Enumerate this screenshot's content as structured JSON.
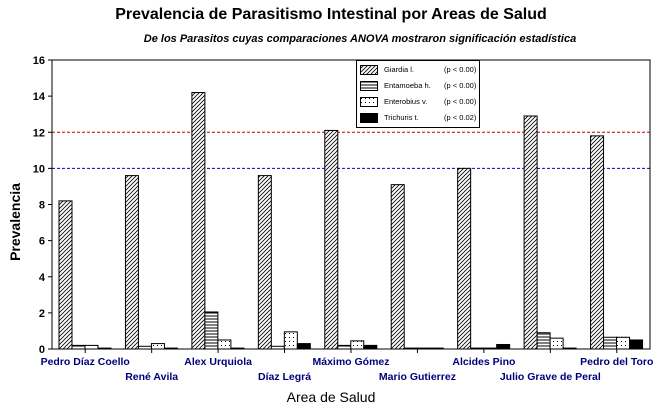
{
  "chart_data": {
    "type": "bar",
    "title": "Prevalencia de Parasitismo Intestinal por Areas de Salud",
    "subtitle": "De los Parasitos cuyas comparaciones ANOVA mostraron significación estadística",
    "xlabel": "Area de Salud",
    "ylabel": "Prevalencia",
    "ylim": [
      0,
      16
    ],
    "yticks": [
      "0",
      "2",
      "4",
      "6",
      "8",
      "10",
      "12",
      "14",
      "16"
    ],
    "grid": false,
    "reference_lines": [
      {
        "y": 10,
        "color": "#0000cc",
        "style": "dashed"
      },
      {
        "y": 12,
        "color": "#cc0000",
        "style": "dashed"
      }
    ],
    "categories": [
      "Pedro Díaz Coello",
      "René Avila",
      "Alex Urquiola",
      "Díaz Legrá",
      "Máximo Gómez",
      "Mario Gutierrez",
      "Alcides Pino",
      "Julio Grave de Peral",
      "Pedro del Toro"
    ],
    "series": [
      {
        "name": "Giardia l.",
        "p_label": "(p < 0.00)",
        "pattern": "diagonal-hatch",
        "values": [
          8.2,
          9.6,
          14.2,
          9.6,
          12.1,
          9.1,
          10.0,
          12.9,
          11.8
        ]
      },
      {
        "name": "Entamoeba h.",
        "p_label": "(p < 0.00)",
        "pattern": "horizontal-lines",
        "values": [
          0.2,
          0.15,
          2.05,
          0.15,
          0.2,
          0.05,
          0.05,
          0.9,
          0.65
        ]
      },
      {
        "name": "Enterobius v.",
        "p_label": "(p < 0.00)",
        "pattern": "dots",
        "values": [
          0.2,
          0.3,
          0.5,
          0.95,
          0.45,
          0.05,
          0.05,
          0.6,
          0.65
        ]
      },
      {
        "name": "Trichuris t.",
        "p_label": "(p < 0.02)",
        "pattern": "solid-black",
        "values": [
          0.05,
          0.05,
          0.05,
          0.3,
          0.2,
          0.05,
          0.25,
          0.05,
          0.5
        ]
      }
    ],
    "legend_position": "top-right"
  }
}
